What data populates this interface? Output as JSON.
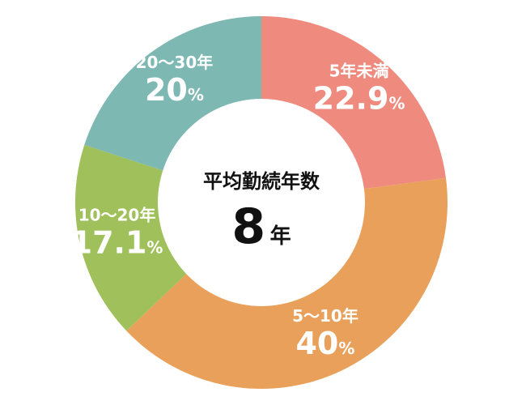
{
  "chart_data": {
    "type": "pie",
    "categories": [
      "5年未満",
      "5～10年",
      "10～20年",
      "20～30年"
    ],
    "values": [
      22.9,
      40,
      17.1,
      20
    ],
    "value_labels": [
      "22.9",
      "40",
      "17.1",
      "20"
    ],
    "unit": "%",
    "colors": [
      "#EE8A7E",
      "#E8A05A",
      "#9FC05A",
      "#7DB8B3"
    ],
    "title": "",
    "center": {
      "title": "平均勤続年数",
      "value": "8",
      "unit": "年"
    }
  }
}
